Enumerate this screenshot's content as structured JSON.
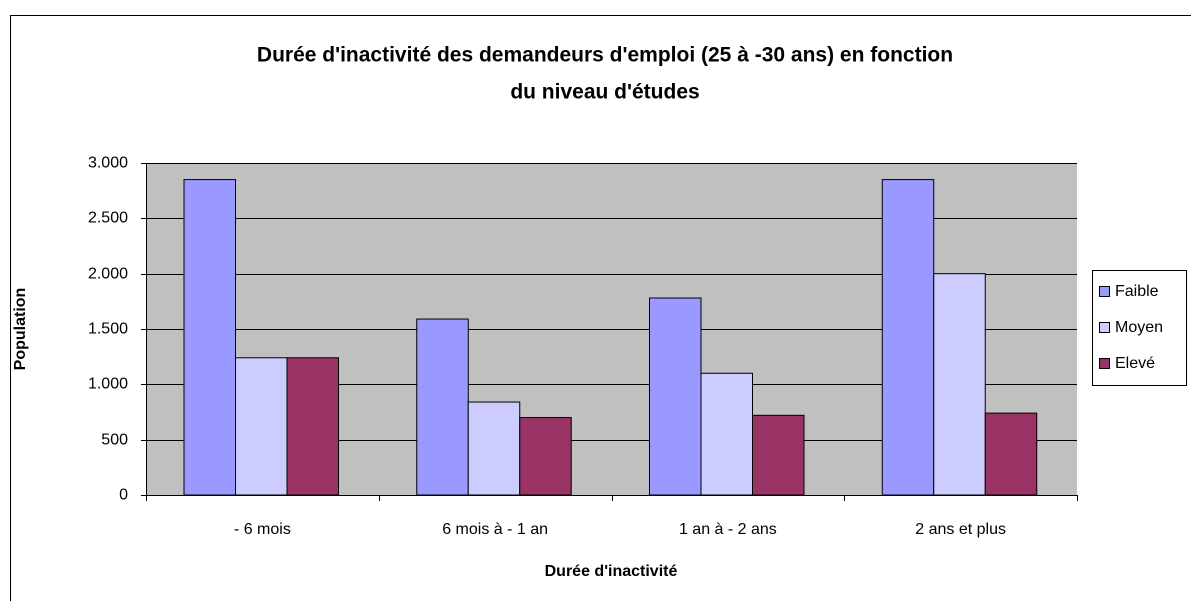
{
  "chart_data": {
    "type": "bar",
    "title": [
      "Durée d'inactivité des demandeurs d'emploi (25 à -30 ans) en fonction",
      "du niveau d'études"
    ],
    "xlabel": "Durée d'inactivité",
    "ylabel": "Population",
    "categories": [
      "- 6 mois",
      "6 mois à - 1 an",
      "1 an à - 2 ans",
      "2 ans et plus"
    ],
    "series": [
      {
        "name": "Faible",
        "color": "#9999ff",
        "values": [
          2850,
          1590,
          1780,
          2850
        ]
      },
      {
        "name": "Moyen",
        "color": "#ccccff",
        "values": [
          1240,
          840,
          1100,
          2000
        ]
      },
      {
        "name": "Elevé",
        "color": "#993366",
        "values": [
          1240,
          700,
          720,
          740
        ]
      }
    ],
    "ylim": [
      0,
      3000
    ],
    "yticks": [
      0,
      {
        "value": 500,
        "label": "500"
      },
      {
        "value": 1000,
        "label": "1.000"
      },
      {
        "value": 1500,
        "label": "1.500"
      },
      {
        "value": 2000,
        "label": "2.000"
      },
      {
        "value": 2500,
        "label": "2.500"
      },
      {
        "value": 3000,
        "label": "3.000"
      }
    ],
    "grid": true,
    "legend": "right"
  }
}
